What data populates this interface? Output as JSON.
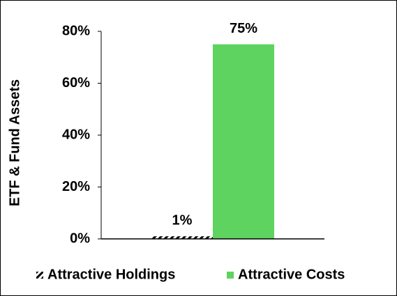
{
  "chart_data": {
    "type": "bar",
    "y_label": "ETF & Fund Assets",
    "categories": [
      null
    ],
    "series": [
      {
        "name": "Attractive Holdings",
        "color": "#000000",
        "pattern": "diagonal-hatch",
        "values": [
          1
        ],
        "value_labels": [
          "1%"
        ]
      },
      {
        "name": "Attractive Costs",
        "color": "#5fd35f",
        "values": [
          75
        ],
        "value_labels": [
          "75%"
        ]
      }
    ],
    "ylim": [
      0,
      80
    ],
    "yticks": [
      {
        "value": 0,
        "label": "0%"
      },
      {
        "value": 20,
        "label": "20%"
      },
      {
        "value": 40,
        "label": "40%"
      },
      {
        "value": 60,
        "label": "60%"
      },
      {
        "value": 80,
        "label": "80%"
      }
    ],
    "grid": false,
    "legend": "bottom"
  }
}
